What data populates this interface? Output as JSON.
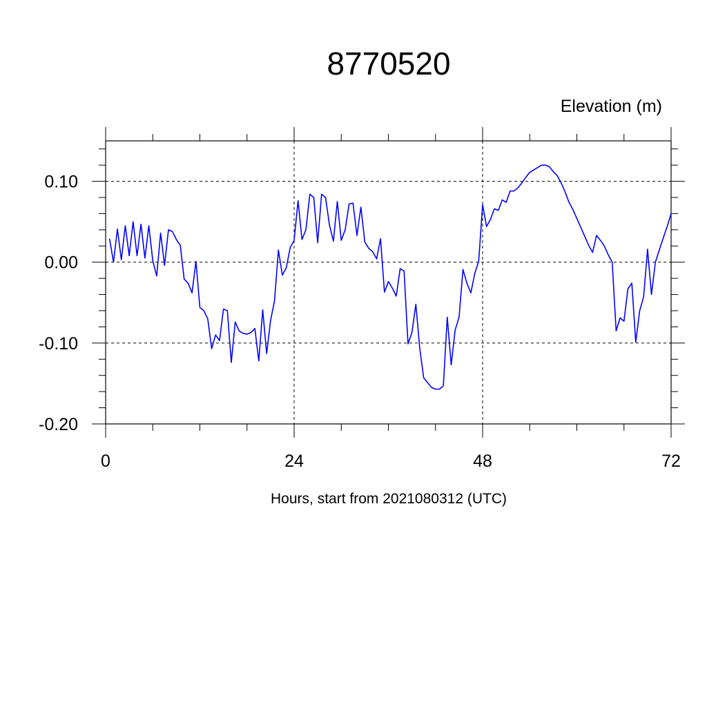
{
  "chart_data": {
    "type": "line",
    "title": "8770520",
    "subtitle": "Elevation (m)",
    "xlabel": "Hours, start from 2021080312 (UTC)",
    "ylabel": "",
    "xlim": [
      0,
      72
    ],
    "ylim": [
      -0.2,
      0.15
    ],
    "x_ticks": [
      "0",
      "24",
      "48",
      "72"
    ],
    "y_ticks": [
      "0.10",
      "0.00",
      "-0.10",
      "-0.20"
    ],
    "grid": "dashed at major ticks",
    "series": [
      {
        "name": "",
        "color": "#0000ff",
        "x": [
          0.5,
          1,
          1.5,
          2,
          2.5,
          3,
          3.5,
          4,
          4.5,
          5,
          5.5,
          6,
          6.5,
          7,
          7.5,
          8,
          8.5,
          9,
          9.5,
          10,
          10.5,
          11,
          11.5,
          12,
          12.5,
          13,
          13.5,
          14,
          14.5,
          15,
          15.5,
          16,
          16.5,
          17,
          17.5,
          18,
          18.5,
          19,
          19.5,
          20,
          20.5,
          21,
          21.5,
          22,
          22.5,
          23,
          23.5,
          24,
          24.5,
          25,
          25.5,
          26,
          26.5,
          27,
          27.5,
          28,
          28.5,
          29,
          29.5,
          30,
          30.5,
          31,
          31.5,
          32,
          32.5,
          33,
          33.5,
          34,
          34.5,
          35,
          35.5,
          36,
          36.5,
          37,
          37.5,
          38,
          38.5,
          39,
          39.5,
          40,
          40.5,
          41,
          41.5,
          42,
          42.5,
          43,
          43.5,
          44,
          44.5,
          45,
          45.5,
          46,
          46.5,
          47,
          47.5,
          48,
          48.5,
          49,
          49.5,
          50,
          50.5,
          51,
          51.5,
          52,
          52.5,
          53,
          53.5,
          54,
          54.5,
          55,
          55.5,
          56,
          56.5,
          57,
          57.5,
          58,
          58.5,
          59,
          59.5,
          60,
          60.5,
          61,
          61.5,
          62,
          62.5,
          63,
          63.5,
          64,
          64.5,
          65,
          65.5,
          66,
          66.5,
          67,
          67.5,
          68,
          68.5,
          69,
          69.5,
          70,
          70.5,
          71,
          71.5,
          72
        ],
        "values": [
          0.029,
          0.0,
          0.041,
          0.003,
          0.045,
          0.008,
          0.05,
          0.008,
          0.047,
          0.005,
          0.045,
          0.002,
          -0.017,
          0.036,
          -0.004,
          0.04,
          0.038,
          0.028,
          0.021,
          -0.021,
          -0.026,
          -0.038,
          0.001,
          -0.056,
          -0.06,
          -0.07,
          -0.107,
          -0.09,
          -0.097,
          -0.058,
          -0.06,
          -0.124,
          -0.074,
          -0.085,
          -0.088,
          -0.089,
          -0.087,
          -0.082,
          -0.122,
          -0.059,
          -0.113,
          -0.072,
          -0.048,
          0.015,
          -0.016,
          -0.007,
          0.018,
          0.027,
          0.076,
          0.028,
          0.04,
          0.084,
          0.08,
          0.024,
          0.084,
          0.08,
          0.046,
          0.026,
          0.075,
          0.027,
          0.04,
          0.072,
          0.073,
          0.033,
          0.068,
          0.025,
          0.017,
          0.013,
          0.004,
          0.029,
          -0.037,
          -0.024,
          -0.032,
          -0.042,
          -0.008,
          -0.011,
          -0.101,
          -0.087,
          -0.052,
          -0.107,
          -0.143,
          -0.149,
          -0.155,
          -0.157,
          -0.157,
          -0.153,
          -0.068,
          -0.127,
          -0.084,
          -0.068,
          -0.009,
          -0.026,
          -0.038,
          -0.014,
          0.001,
          0.071,
          0.044,
          0.053,
          0.066,
          0.064,
          0.077,
          0.074,
          0.088,
          0.088,
          0.092,
          0.098,
          0.105,
          0.111,
          0.114,
          0.117,
          0.12,
          0.12,
          0.118,
          0.112,
          0.107,
          0.098,
          0.087,
          0.074,
          0.065,
          0.054,
          0.043,
          0.032,
          0.021,
          0.012,
          0.033,
          0.027,
          0.02,
          0.009,
          0.0,
          -0.085,
          -0.069,
          -0.073,
          -0.033,
          -0.026,
          -0.099,
          -0.06,
          -0.043,
          0.016,
          -0.04,
          0.0,
          0.015,
          0.03,
          0.044,
          0.06
        ]
      }
    ]
  }
}
